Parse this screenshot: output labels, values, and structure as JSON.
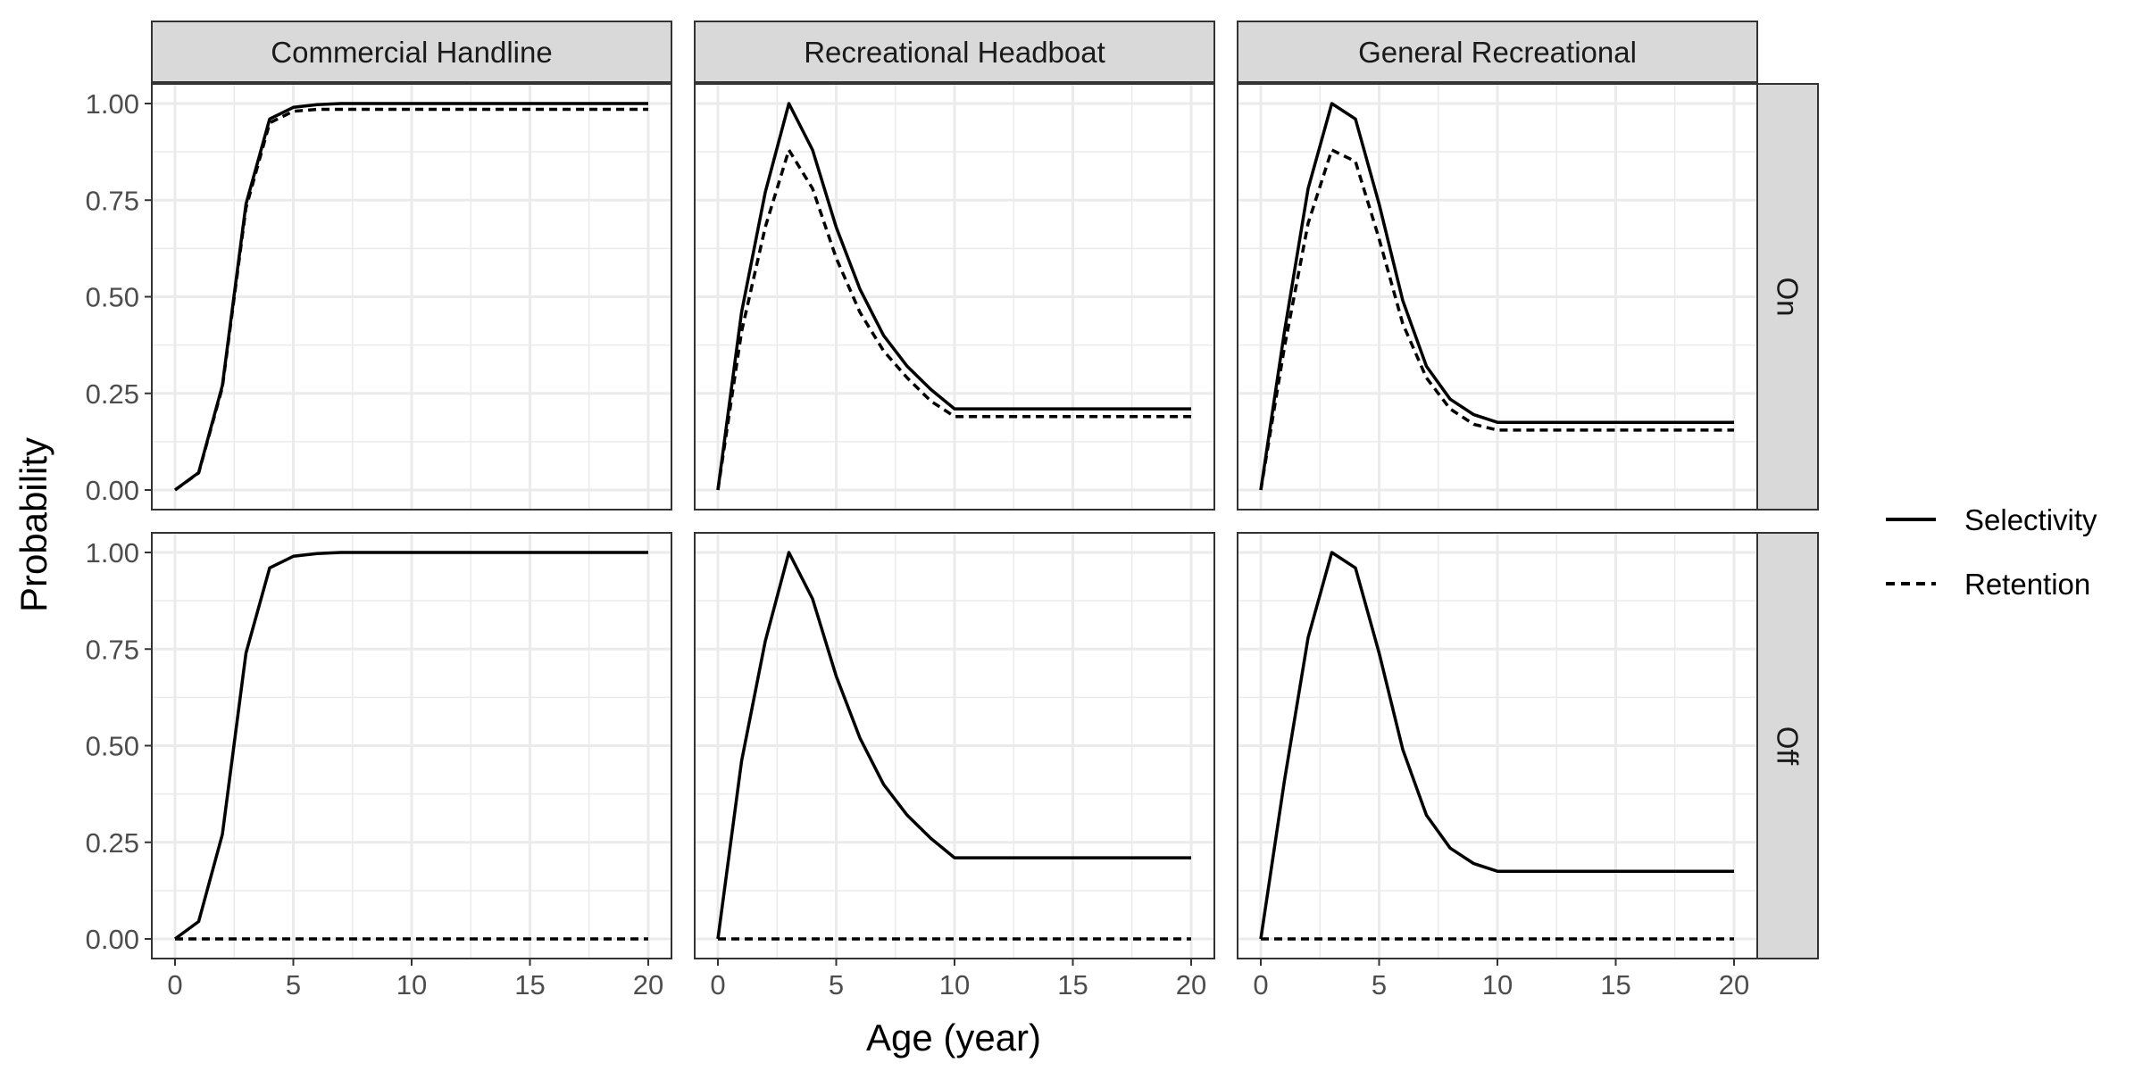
{
  "chart_data": {
    "type": "line",
    "facet_columns": [
      "Commercial Handline",
      "Recreational Headboat",
      "General Recreational"
    ],
    "facet_rows": [
      "On",
      "Off"
    ],
    "xlabel": "Age (year)",
    "ylabel": "Probability",
    "xlim": [
      0,
      20
    ],
    "ylim": [
      0,
      1
    ],
    "x_ticks": [
      0,
      5,
      10,
      15,
      20
    ],
    "y_ticks": [
      "0.00",
      "0.25",
      "0.50",
      "0.75",
      "1.00"
    ],
    "legend": {
      "position": "right",
      "entries": [
        {
          "name": "Selectivity",
          "linetype": "solid"
        },
        {
          "name": "Retention",
          "linetype": "dashed"
        }
      ]
    },
    "x": [
      0,
      1,
      2,
      3,
      4,
      5,
      6,
      7,
      8,
      9,
      10,
      11,
      12,
      13,
      14,
      15,
      16,
      17,
      18,
      19,
      20
    ],
    "panels": [
      {
        "column": "Commercial Handline",
        "row": "On",
        "series": [
          {
            "name": "Selectivity",
            "values": [
              0.0,
              0.045,
              0.27,
              0.74,
              0.96,
              0.99,
              0.997,
              1.0,
              1.0,
              1.0,
              1.0,
              1.0,
              1.0,
              1.0,
              1.0,
              1.0,
              1.0,
              1.0,
              1.0,
              1.0,
              1.0
            ]
          },
          {
            "name": "Retention",
            "values": [
              0.0,
              0.044,
              0.265,
              0.73,
              0.95,
              0.98,
              0.985,
              0.985,
              0.985,
              0.985,
              0.985,
              0.985,
              0.985,
              0.985,
              0.985,
              0.985,
              0.985,
              0.985,
              0.985,
              0.985,
              0.985
            ]
          }
        ]
      },
      {
        "column": "Recreational Headboat",
        "row": "On",
        "series": [
          {
            "name": "Selectivity",
            "values": [
              0.0,
              0.46,
              0.77,
              1.0,
              0.88,
              0.68,
              0.52,
              0.4,
              0.32,
              0.26,
              0.21,
              0.21,
              0.21,
              0.21,
              0.21,
              0.21,
              0.21,
              0.21,
              0.21,
              0.21,
              0.21
            ]
          },
          {
            "name": "Retention",
            "values": [
              0.0,
              0.41,
              0.68,
              0.88,
              0.78,
              0.6,
              0.46,
              0.36,
              0.29,
              0.23,
              0.19,
              0.19,
              0.19,
              0.19,
              0.19,
              0.19,
              0.19,
              0.19,
              0.19,
              0.19,
              0.19
            ]
          }
        ]
      },
      {
        "column": "General Recreational",
        "row": "On",
        "series": [
          {
            "name": "Selectivity",
            "values": [
              0.0,
              0.41,
              0.78,
              1.0,
              0.96,
              0.74,
              0.49,
              0.32,
              0.235,
              0.195,
              0.175,
              0.175,
              0.175,
              0.175,
              0.175,
              0.175,
              0.175,
              0.175,
              0.175,
              0.175,
              0.175
            ]
          },
          {
            "name": "Retention",
            "values": [
              0.0,
              0.37,
              0.69,
              0.88,
              0.85,
              0.65,
              0.43,
              0.29,
              0.21,
              0.17,
              0.155,
              0.155,
              0.155,
              0.155,
              0.155,
              0.155,
              0.155,
              0.155,
              0.155,
              0.155,
              0.155
            ]
          }
        ]
      },
      {
        "column": "Commercial Handline",
        "row": "Off",
        "series": [
          {
            "name": "Selectivity",
            "values": [
              0.0,
              0.045,
              0.27,
              0.74,
              0.96,
              0.99,
              0.997,
              1.0,
              1.0,
              1.0,
              1.0,
              1.0,
              1.0,
              1.0,
              1.0,
              1.0,
              1.0,
              1.0,
              1.0,
              1.0,
              1.0
            ]
          },
          {
            "name": "Retention",
            "values": [
              0,
              0,
              0,
              0,
              0,
              0,
              0,
              0,
              0,
              0,
              0,
              0,
              0,
              0,
              0,
              0,
              0,
              0,
              0,
              0,
              0
            ]
          }
        ]
      },
      {
        "column": "Recreational Headboat",
        "row": "Off",
        "series": [
          {
            "name": "Selectivity",
            "values": [
              0.0,
              0.46,
              0.77,
              1.0,
              0.88,
              0.68,
              0.52,
              0.4,
              0.32,
              0.26,
              0.21,
              0.21,
              0.21,
              0.21,
              0.21,
              0.21,
              0.21,
              0.21,
              0.21,
              0.21,
              0.21
            ]
          },
          {
            "name": "Retention",
            "values": [
              0,
              0,
              0,
              0,
              0,
              0,
              0,
              0,
              0,
              0,
              0,
              0,
              0,
              0,
              0,
              0,
              0,
              0,
              0,
              0,
              0
            ]
          }
        ]
      },
      {
        "column": "General Recreational",
        "row": "Off",
        "series": [
          {
            "name": "Selectivity",
            "values": [
              0.0,
              0.41,
              0.78,
              1.0,
              0.96,
              0.74,
              0.49,
              0.32,
              0.235,
              0.195,
              0.175,
              0.175,
              0.175,
              0.175,
              0.175,
              0.175,
              0.175,
              0.175,
              0.175,
              0.175,
              0.175
            ]
          },
          {
            "name": "Retention",
            "values": [
              0,
              0,
              0,
              0,
              0,
              0,
              0,
              0,
              0,
              0,
              0,
              0,
              0,
              0,
              0,
              0,
              0,
              0,
              0,
              0,
              0
            ]
          }
        ]
      }
    ],
    "colors": {
      "line": "#000000",
      "strip_fill": "#d9d9d9",
      "grid": "#ebebeb",
      "panel_border": "#333333",
      "tick_text": "#4d4d4d"
    }
  }
}
